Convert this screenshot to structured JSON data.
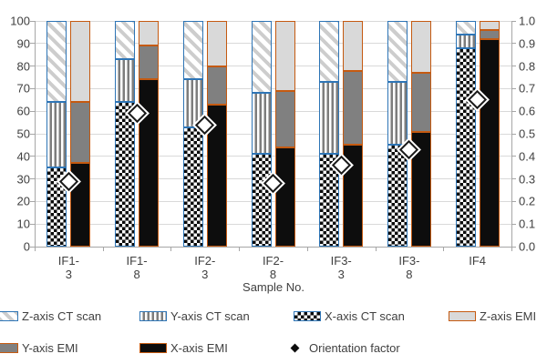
{
  "chart_data": {
    "type": "bar",
    "subtype": "grouped-stacked-100pct-with-markers",
    "title": "",
    "xlabel": "Sample No.",
    "categories": [
      "IF1-3",
      "IF1-8",
      "IF2-3",
      "IF2-8",
      "IF3-3",
      "IF3-8",
      "IF4"
    ],
    "category_labels": [
      [
        "IF1-",
        "3"
      ],
      [
        "IF1-",
        "8"
      ],
      [
        "IF2-",
        "3"
      ],
      [
        "IF2-",
        "8"
      ],
      [
        "IF3-",
        "3"
      ],
      [
        "IF3-",
        "8"
      ],
      [
        "IF4"
      ]
    ],
    "left_axis": {
      "min": 0,
      "max": 100,
      "step": 10,
      "ticks": [
        "0",
        "10",
        "20",
        "30",
        "40",
        "50",
        "60",
        "70",
        "80",
        "90",
        "100"
      ]
    },
    "right_axis": {
      "min": 0.0,
      "max": 1.0,
      "step": 0.1,
      "ticks": [
        "0.0",
        "0.1",
        "0.2",
        "0.3",
        "0.4",
        "0.5",
        "0.6",
        "0.7",
        "0.8",
        "0.9",
        "1.0"
      ]
    },
    "grid": "horizontal",
    "series": [
      {
        "name": "X-axis CT scan",
        "bar": "CT",
        "pattern": "checker",
        "border": "ct",
        "values": [
          35,
          64,
          53,
          41,
          41,
          45,
          88
        ]
      },
      {
        "name": "Y-axis CT scan",
        "bar": "CT",
        "pattern": "vstripe",
        "border": "ct",
        "values": [
          29,
          19,
          21,
          27,
          32,
          28,
          6
        ]
      },
      {
        "name": "Z-axis CT scan",
        "bar": "CT",
        "pattern": "dhatch",
        "border": "ct",
        "values": [
          36,
          17,
          26,
          32,
          27,
          27,
          6
        ]
      },
      {
        "name": "X-axis EMI",
        "bar": "EMI",
        "pattern": "black",
        "border": "emi",
        "values": [
          37,
          74,
          63,
          44,
          45,
          51,
          92
        ]
      },
      {
        "name": "Y-axis EMI",
        "bar": "EMI",
        "pattern": "gray",
        "border": "emi",
        "values": [
          27,
          15,
          17,
          25,
          33,
          26,
          4
        ]
      },
      {
        "name": "Z-axis EMI",
        "bar": "EMI",
        "pattern": "lgray",
        "border": "emi",
        "values": [
          36,
          11,
          20,
          31,
          22,
          23,
          4
        ]
      }
    ],
    "marker_series": {
      "name": "Orientation factor",
      "axis": "right",
      "marker": "diamond",
      "values": [
        0.29,
        0.59,
        0.54,
        0.28,
        0.36,
        0.43,
        0.65
      ]
    }
  },
  "legend": {
    "rows": [
      [
        {
          "label": "Z-axis CT scan",
          "swatch": "dhatch"
        },
        {
          "label": "Y-axis CT scan",
          "swatch": "vstripe"
        },
        {
          "label": "X-axis CT scan",
          "swatch": "checker"
        },
        {
          "label": "Z-axis EMI",
          "swatch": "lgray"
        }
      ],
      [
        {
          "label": "Y-axis EMI",
          "swatch": "gray"
        },
        {
          "label": "X-axis EMI",
          "swatch": "black"
        },
        {
          "label": "Orientation factor",
          "swatch": "marker"
        }
      ]
    ]
  },
  "colors": {
    "ct_border": "#2E75B6",
    "emi_border": "#C55A11",
    "gray_fill": "#808080",
    "light_gray_fill": "#D9D9D9",
    "black_fill": "#0D0D0D",
    "hatch_stroke": "#CDCDCD",
    "stripe_stroke": "#7D7D7D",
    "gridline": "#D9D9D9",
    "axis": "#A6A6A6",
    "text": "#404040",
    "marker_fill": "#FFFFFF",
    "marker_stroke": "#1A1A1A"
  }
}
